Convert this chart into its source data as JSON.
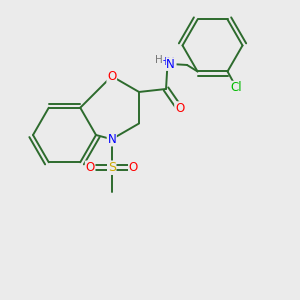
{
  "background_color": "#ebebeb",
  "bond_color": "#2d6b2d",
  "atom_colors": {
    "O": "#ff0000",
    "N": "#0000ff",
    "S": "#ccaa00",
    "Cl": "#00bb00",
    "H": "#777777",
    "C": "#2d6b2d"
  },
  "figsize": [
    3.0,
    3.0
  ],
  "dpi": 100,
  "lw": 1.4,
  "font_size": 8.5
}
